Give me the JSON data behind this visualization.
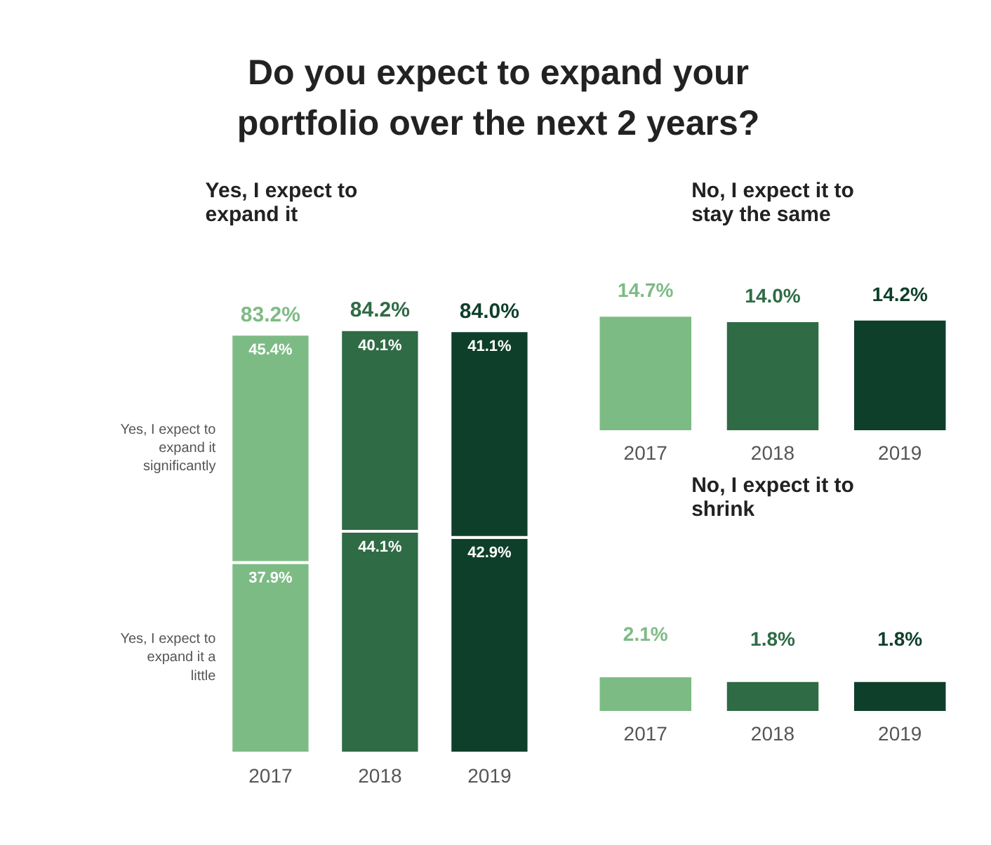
{
  "chart_data": [
    {
      "type": "bar",
      "title": "Do you expect to expand your portfolio over the next 2 years?",
      "subtitle": "Yes, I expect to expand it",
      "categories": [
        "2017",
        "2018",
        "2019"
      ],
      "stacked": true,
      "series": [
        {
          "name": "Yes, I expect to expand it a little",
          "colors": [
            "#7dbb85",
            "#2f6b45",
            "#0e3f2b"
          ],
          "values": [
            37.9,
            44.1,
            42.9
          ],
          "value_labels": [
            "37.9%",
            "44.1%",
            "42.9%"
          ]
        },
        {
          "name": "Yes, I expect to expand it significantly",
          "colors": [
            "#7dbb85",
            "#2f6b45",
            "#0e3f2b"
          ],
          "values": [
            45.4,
            40.1,
            41.1
          ],
          "value_labels": [
            "45.4%",
            "40.1%",
            "41.1%"
          ]
        }
      ],
      "totals": [
        "83.2%",
        "84.2%",
        "84.0%"
      ]
    },
    {
      "type": "bar",
      "title": "No, I expect it to stay the same",
      "categories": [
        "2017",
        "2018",
        "2019"
      ],
      "colors": [
        "#7dbb85",
        "#2f6b45",
        "#0e3f2b"
      ],
      "values": [
        14.7,
        14.0,
        14.2
      ],
      "value_labels": [
        "14.7%",
        "14.0%",
        "14.2%"
      ]
    },
    {
      "type": "bar",
      "title": "No, I expect it to shrink",
      "categories": [
        "2017",
        "2018",
        "2019"
      ],
      "colors": [
        "#7dbb85",
        "#2f6b45",
        "#0e3f2b"
      ],
      "values": [
        2.1,
        1.8,
        1.8
      ],
      "value_labels": [
        "2.1%",
        "1.8%",
        "1.8%"
      ]
    }
  ]
}
